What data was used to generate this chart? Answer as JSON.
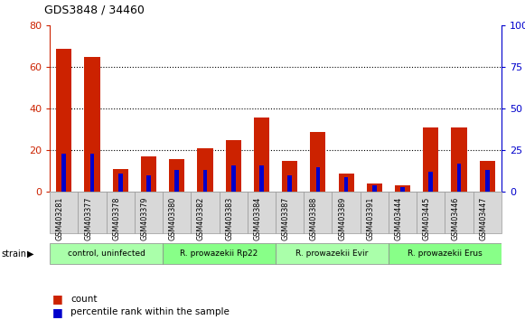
{
  "title": "GDS3848 / 34460",
  "samples": [
    "GSM403281",
    "GSM403377",
    "GSM403378",
    "GSM403379",
    "GSM403380",
    "GSM403382",
    "GSM403383",
    "GSM403384",
    "GSM403387",
    "GSM403388",
    "GSM403389",
    "GSM403391",
    "GSM403444",
    "GSM403445",
    "GSM403446",
    "GSM403447"
  ],
  "count": [
    69,
    65,
    11,
    17,
    16,
    21,
    25,
    36,
    15,
    29,
    9,
    4,
    3,
    31,
    31,
    15
  ],
  "percentile": [
    23,
    23,
    11,
    10,
    13,
    13,
    16,
    16,
    10,
    15,
    9,
    4,
    3,
    12,
    17,
    13
  ],
  "red_color": "#cc2200",
  "blue_color": "#0000cc",
  "ylim_left": [
    0,
    80
  ],
  "ylim_right": [
    0,
    100
  ],
  "yticks_left": [
    0,
    20,
    40,
    60,
    80
  ],
  "yticks_right": [
    0,
    25,
    50,
    75,
    100
  ],
  "groups": [
    {
      "label": "control, uninfected",
      "start": 0,
      "end": 4,
      "color": "#aaffaa"
    },
    {
      "label": "R. prowazekii Rp22",
      "start": 4,
      "end": 8,
      "color": "#88ff88"
    },
    {
      "label": "R. prowazekii Evir",
      "start": 8,
      "end": 12,
      "color": "#aaffaa"
    },
    {
      "label": "R. prowazekii Erus",
      "start": 12,
      "end": 16,
      "color": "#88ff88"
    }
  ],
  "bar_width": 0.55,
  "blue_bar_width": 0.15,
  "bg_color": "#ffffff",
  "right_axis_color": "#0000cc",
  "left_axis_color": "#cc2200",
  "grid_color": "#000000",
  "legend_count_label": "count",
  "legend_pct_label": "percentile rank within the sample",
  "sample_box_color": "#d8d8d8",
  "sample_box_edge": "#999999"
}
